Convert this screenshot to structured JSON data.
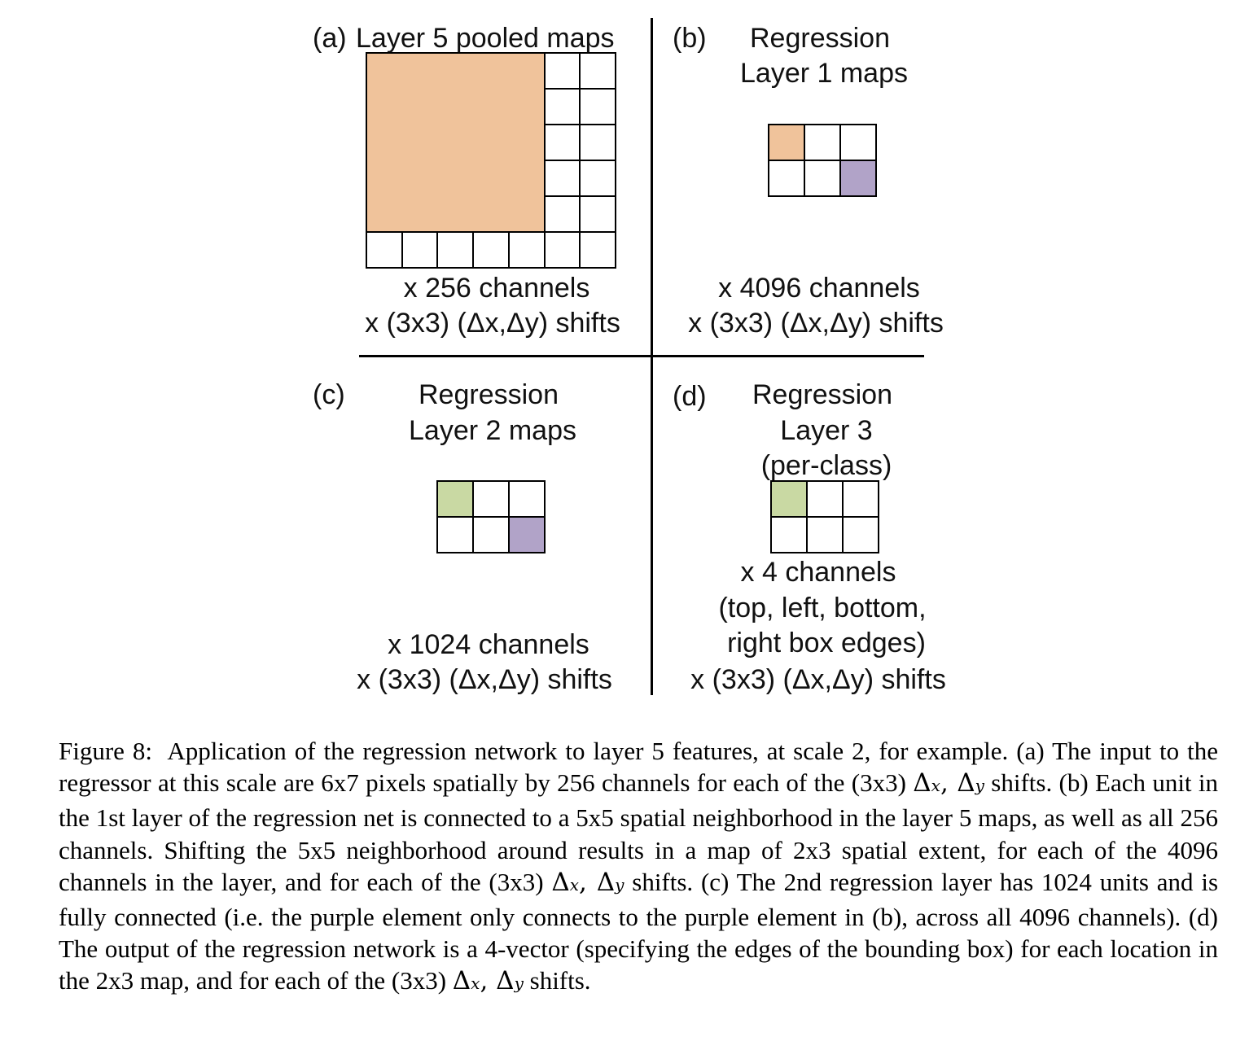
{
  "panels": {
    "a": {
      "tag": "(a)",
      "title_lines": [
        "Layer 5 pooled maps"
      ],
      "channels": "x 256 channels",
      "shifts": "x (3x3) (Δx,Δy) shifts"
    },
    "b": {
      "tag": "(b)",
      "title_lines": [
        "Regression",
        "Layer 1 maps"
      ],
      "channels": "x 4096 channels",
      "shifts": "x (3x3) (Δx,Δy) shifts"
    },
    "c": {
      "tag": "(c)",
      "title_lines": [
        "Regression",
        "Layer 2 maps"
      ],
      "channels": "x 1024 channels",
      "shifts": "x (3x3) (Δx,Δy) shifts"
    },
    "d": {
      "tag": "(d)",
      "title_lines": [
        "Regression",
        "Layer 3",
        "(per-class)"
      ],
      "channels": "x 4 channels",
      "edges_lines": [
        "(top, left, bottom,",
        "right box edges)"
      ],
      "shifts": "x (3x3) (Δx,Δy) shifts"
    }
  },
  "colors": {
    "orange": "#f0c39b",
    "purple": "#b1a3c8",
    "green": "#c9d9a3"
  },
  "caption": {
    "prefix": "Figure 8:",
    "part1": "Application of the regression network to layer 5 features, at scale 2, for example. (a) The input to the regressor at this scale are 6x7 pixels spatially by 256 channels for each of the (3x3)",
    "part2": "shifts. (b) Each unit in the 1st layer of the regression net is connected to a 5x5 spatial neighborhood in the layer 5 maps, as well as all 256 channels. Shifting the 5x5 neighborhood around results in a map of 2x3 spatial extent, for each of the 4096 channels in the layer, and for each of the (3x3)",
    "part3": "shifts. (c) The 2nd regression layer has 1024 units and is fully connected (i.e. the purple element only connects to the purple element in (b), across all 4096 channels). (d) The output of the regression network is a 4-vector (specifying the edges of the bounding box) for each location in the 2x3 map, and for each of the (3x3)",
    "part4": "shifts."
  }
}
